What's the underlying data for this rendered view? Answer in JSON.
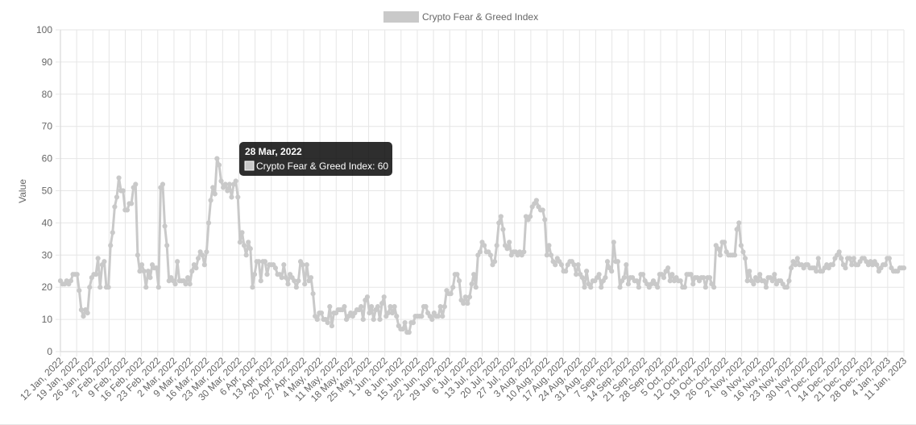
{
  "chart_data": {
    "type": "line",
    "title": "",
    "xlabel": "",
    "ylabel": "Value",
    "ylim": [
      0,
      100
    ],
    "yticks": [
      0,
      10,
      20,
      30,
      40,
      50,
      60,
      70,
      80,
      90,
      100
    ],
    "grid": true,
    "legend_position": "top-center",
    "series_color": "#c9c9c9",
    "xtick_labels": [
      "12 Jan, 2022",
      "19 Jan, 2022",
      "26 Jan, 2022",
      "2 Feb, 2022",
      "9 Feb, 2022",
      "16 Feb, 2022",
      "23 Feb, 2022",
      "2 Mar, 2022",
      "9 Mar, 2022",
      "16 Mar, 2022",
      "23 Mar, 2022",
      "30 Mar, 2022",
      "6 Apr, 2022",
      "13 Apr, 2022",
      "20 Apr, 2022",
      "27 Apr, 2022",
      "4 May, 2022",
      "11 May, 2022",
      "18 May, 2022",
      "25 May, 2022",
      "1 Jun, 2022",
      "8 Jun, 2022",
      "15 Jun, 2022",
      "22 Jun, 2022",
      "29 Jun, 2022",
      "6 Jul, 2022",
      "13 Jul, 2022",
      "20 Jul, 2022",
      "27 Jul, 2022",
      "3 Aug, 2022",
      "10 Aug, 2022",
      "17 Aug, 2022",
      "24 Aug, 2022",
      "31 Aug, 2022",
      "7 Sep, 2022",
      "14 Sep, 2022",
      "21 Sep, 2022",
      "28 Sep, 2022",
      "5 Oct, 2022",
      "12 Oct, 2022",
      "19 Oct, 2022",
      "26 Oct, 2022",
      "2 Nov, 2022",
      "9 Nov, 2022",
      "16 Nov, 2022",
      "23 Nov, 2022",
      "30 Nov, 2022",
      "7 Dec, 2022",
      "14 Dec, 2022",
      "21 Dec, 2022",
      "28 Dec, 2022",
      "4 Jan, 2023",
      "11 Jan, 2023"
    ],
    "series": [
      {
        "name": "Crypto Fear & Greed Index",
        "values": [
          22,
          21,
          21,
          22,
          21,
          22,
          24,
          24,
          24,
          19,
          13,
          11,
          13,
          12,
          20,
          23,
          24,
          24,
          29,
          20,
          27,
          28,
          20,
          20,
          33,
          37,
          45,
          48,
          54,
          50,
          50,
          44,
          44,
          46,
          46,
          51,
          52,
          30,
          25,
          27,
          25,
          20,
          25,
          23,
          27,
          26,
          26,
          20,
          51,
          52,
          39,
          33,
          22,
          23,
          22,
          21,
          28,
          22,
          22,
          22,
          21,
          23,
          21,
          25,
          27,
          26,
          29,
          31,
          30,
          27,
          31,
          40,
          47,
          51,
          49,
          60,
          58,
          53,
          51,
          52,
          50,
          52,
          48,
          52,
          53,
          48,
          34,
          37,
          33,
          30,
          34,
          32,
          20,
          24,
          28,
          28,
          22,
          28,
          28,
          24,
          27,
          27,
          27,
          26,
          24,
          24,
          23,
          27,
          23,
          21,
          24,
          23,
          22,
          20,
          22,
          28,
          27,
          21,
          27,
          22,
          23,
          18,
          11,
          10,
          12,
          12,
          10,
          10,
          9,
          14,
          8,
          12,
          12,
          13,
          13,
          13,
          14,
          10,
          11,
          12,
          11,
          12,
          13,
          13,
          14,
          10,
          16,
          17,
          12,
          14,
          10,
          13,
          14,
          10,
          15,
          17,
          11,
          12,
          14,
          12,
          14,
          11,
          8,
          7,
          7,
          9,
          6,
          6,
          9,
          9,
          11,
          11,
          11,
          11,
          14,
          14,
          12,
          11,
          10,
          12,
          11,
          11,
          14,
          11,
          14,
          19,
          18,
          18,
          20,
          24,
          24,
          22,
          16,
          15,
          17,
          15,
          17,
          21,
          24,
          20,
          30,
          31,
          34,
          33,
          31,
          31,
          30,
          27,
          28,
          33,
          40,
          42,
          38,
          33,
          32,
          34,
          30,
          31,
          31,
          30,
          31,
          30,
          31,
          42,
          41,
          42,
          45,
          46,
          47,
          45,
          44,
          44,
          41,
          30,
          33,
          30,
          28,
          27,
          29,
          28,
          27,
          25,
          25,
          27,
          28,
          28,
          27,
          24,
          27,
          24,
          23,
          20,
          25,
          21,
          20,
          22,
          22,
          23,
          24,
          20,
          22,
          23,
          28,
          26,
          25,
          34,
          28,
          28,
          20,
          22,
          23,
          27,
          21,
          23,
          23,
          22,
          22,
          20,
          24,
          24,
          22,
          21,
          20,
          21,
          22,
          21,
          20,
          24,
          24,
          23,
          25,
          26,
          22,
          24,
          22,
          23,
          22,
          22,
          20,
          20,
          24,
          24,
          24,
          21,
          23,
          23,
          22,
          23,
          23,
          20,
          23,
          23,
          21,
          20,
          33,
          32,
          30,
          34,
          34,
          31,
          30,
          30,
          30,
          30,
          38,
          40,
          33,
          31,
          29,
          22,
          25,
          22,
          21,
          23,
          22,
          24,
          22,
          22,
          20,
          23,
          23,
          22,
          24,
          21,
          22,
          22,
          21,
          20,
          20,
          22,
          26,
          28,
          27,
          29,
          27,
          27,
          26,
          27,
          27,
          26,
          26,
          26,
          25,
          29,
          25,
          25,
          26,
          27,
          26,
          27,
          27,
          29,
          30,
          31,
          29,
          27,
          26,
          29,
          29,
          27,
          29,
          27,
          27,
          28,
          29,
          29,
          28,
          27,
          28,
          27,
          28,
          27,
          25,
          26,
          27,
          27,
          29,
          29,
          26,
          25,
          25,
          25,
          26,
          26,
          26
        ]
      }
    ],
    "tooltip": {
      "title": "28 Mar, 2022",
      "label": "Crypto Fear & Greed Index: 60"
    }
  }
}
